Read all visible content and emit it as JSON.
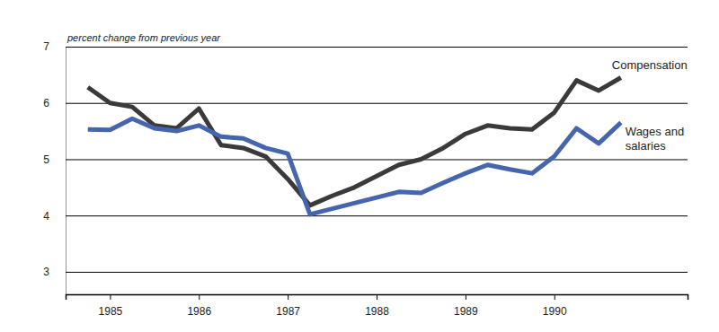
{
  "chart_data": {
    "type": "line",
    "y_label": "percent change from previous year",
    "x": [
      1984.75,
      1985.0,
      1985.25,
      1985.5,
      1985.75,
      1986.0,
      1986.25,
      1986.5,
      1986.75,
      1987.0,
      1987.25,
      1987.5,
      1987.75,
      1988.0,
      1988.25,
      1988.5,
      1988.75,
      1989.0,
      1989.25,
      1989.5,
      1989.75,
      1990.0,
      1990.25,
      1990.5,
      1990.75
    ],
    "series": [
      {
        "name": "Compensation",
        "color": "#3a3a3a",
        "values": [
          6.28,
          6.0,
          5.93,
          5.6,
          5.55,
          5.9,
          5.25,
          5.2,
          5.05,
          4.65,
          4.18,
          4.35,
          4.5,
          4.7,
          4.9,
          5.0,
          5.2,
          5.45,
          5.6,
          5.55,
          5.53,
          5.83,
          6.4,
          6.22,
          6.45
        ]
      },
      {
        "name": "Wages and salaries",
        "color": "#4565ad",
        "values": [
          5.53,
          5.52,
          5.72,
          5.55,
          5.5,
          5.6,
          5.4,
          5.37,
          5.2,
          5.1,
          4.02,
          4.12,
          4.22,
          4.32,
          4.42,
          4.4,
          4.58,
          4.75,
          4.9,
          4.82,
          4.75,
          5.05,
          5.55,
          5.28,
          5.65
        ]
      }
    ],
    "xlim": [
      1984.5,
      1991.5
    ],
    "xticks": [
      1985,
      1986,
      1987,
      1988,
      1989,
      1990
    ],
    "ylim": [
      2.6,
      7
    ],
    "yticks": [
      3,
      4,
      5,
      6,
      7
    ],
    "grid": true
  }
}
